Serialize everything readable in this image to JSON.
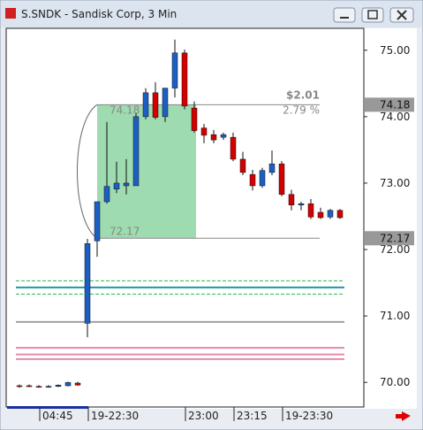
{
  "chart_data": {
    "type": "candlestick",
    "title": "S.SNDK - Sandisk Corp, 3 Min",
    "categories": [
      null,
      null,
      "04:45",
      null,
      null,
      null,
      null,
      "19-22:30",
      null,
      null,
      null,
      null,
      null,
      null,
      null,
      null,
      null,
      "23:00",
      null,
      null,
      null,
      null,
      "23:15",
      null,
      null,
      null,
      null,
      "19-23:30",
      null,
      null,
      null,
      null,
      null,
      null
    ],
    "open": [
      69.95,
      69.95,
      69.94,
      69.93,
      69.94,
      69.95,
      69.99,
      70.89,
      72.13,
      72.72,
      72.91,
      72.96,
      72.96,
      74.0,
      74.36,
      74.0,
      74.43,
      74.96,
      74.13,
      73.83,
      73.73,
      73.69,
      73.69,
      73.36,
      73.13,
      72.96,
      73.16,
      73.29,
      72.83,
      72.67,
      72.69,
      72.56,
      72.49,
      72.59
    ],
    "high": [
      69.97,
      69.97,
      69.96,
      69.96,
      69.97,
      70.01,
      70.01,
      72.16,
      72.72,
      73.92,
      73.32,
      73.36,
      74.05,
      74.43,
      74.52,
      74.43,
      75.16,
      75.01,
      74.23,
      73.89,
      73.8,
      73.76,
      73.76,
      73.47,
      73.2,
      73.23,
      73.49,
      73.33,
      72.9,
      72.72,
      72.76,
      72.63,
      72.61,
      72.61
    ],
    "low": [
      69.92,
      69.93,
      69.92,
      69.92,
      69.93,
      69.94,
      69.95,
      70.68,
      71.89,
      72.69,
      72.85,
      72.83,
      72.96,
      73.96,
      73.96,
      73.92,
      74.29,
      74.11,
      73.76,
      73.6,
      73.6,
      73.65,
      73.33,
      73.12,
      72.89,
      72.93,
      73.12,
      72.8,
      72.59,
      72.59,
      72.46,
      72.46,
      72.46,
      72.46
    ],
    "close": [
      69.94,
      69.94,
      69.93,
      69.94,
      69.96,
      70.0,
      69.96,
      72.09,
      72.72,
      72.95,
      73.0,
      73.0,
      74.0,
      74.36,
      73.99,
      74.43,
      74.96,
      74.16,
      73.79,
      73.72,
      73.65,
      73.73,
      73.36,
      73.16,
      72.96,
      73.19,
      73.29,
      72.83,
      72.67,
      72.69,
      72.49,
      72.48,
      72.59,
      72.48
    ],
    "up_color": "#1c5fc4",
    "down_color": "#d40000",
    "ylim": [
      69.63,
      75.33
    ],
    "yticks": [
      {
        "value": 70,
        "label": "70.00"
      },
      {
        "value": 71,
        "label": "71.00"
      },
      {
        "value": 72,
        "label": "72.00"
      },
      {
        "value": 73,
        "label": "73.00"
      },
      {
        "value": 74,
        "label": "74.00"
      },
      {
        "value": 75,
        "label": "75.00"
      }
    ],
    "price_labels": [
      {
        "value": 74.18,
        "label": "74.18"
      },
      {
        "value": 72.17,
        "label": "72.17"
      }
    ],
    "measure": {
      "change": {
        "value": 2.01,
        "label": "$2.01"
      },
      "percent": {
        "value": 2.79,
        "label": "2.79 %"
      }
    },
    "levels": [
      {
        "value": 71.53,
        "color": "#2fb84a",
        "dash": true
      },
      {
        "value": 71.43,
        "color": "#1c9aa8",
        "dash": false
      },
      {
        "value": 71.33,
        "color": "#2fb84a",
        "dash": true
      },
      {
        "value": 70.91,
        "color": "#a0a0a0",
        "dash": false
      },
      {
        "value": 70.52,
        "color": "#e68aa8",
        "dash": false
      },
      {
        "value": 70.42,
        "color": "#e68aa8",
        "dash": false
      },
      {
        "value": 70.35,
        "color": "#e68aa8",
        "dash": false
      }
    ]
  }
}
